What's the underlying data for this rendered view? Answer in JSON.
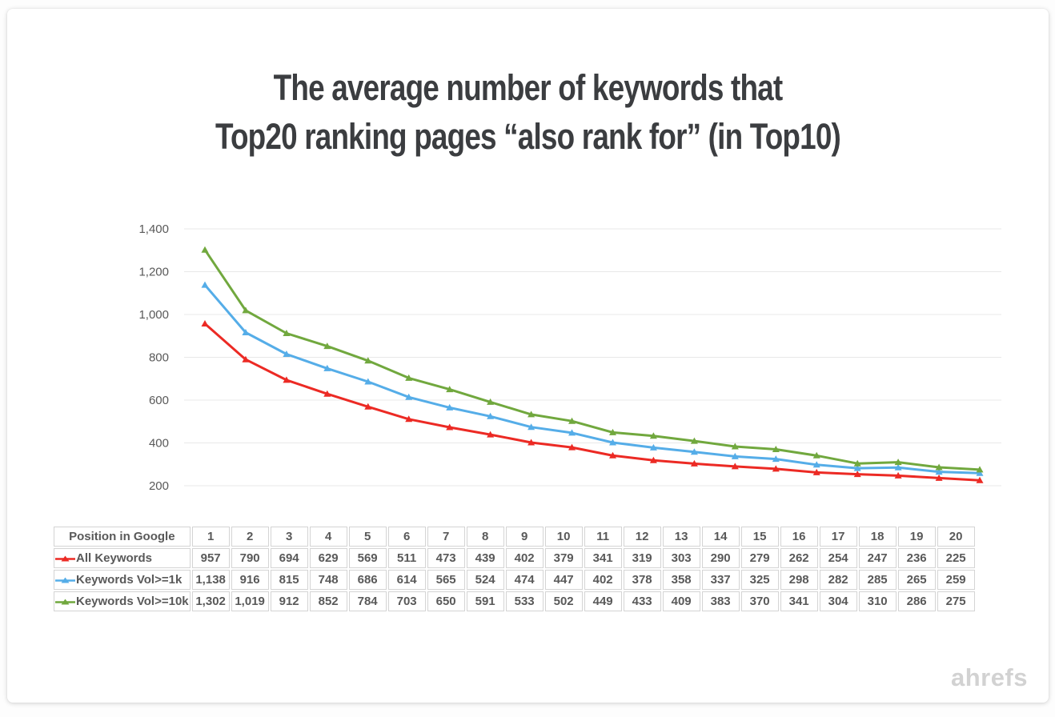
{
  "page": {
    "watermark": "ahrefs"
  },
  "title": {
    "line1": "The average number of keywords that",
    "line2": "Top20 ranking pages “also rank for” (in Top10)"
  },
  "chart_data": {
    "type": "line",
    "title": "The average number of keywords that Top20 ranking pages “also rank for” (in Top10)",
    "categories": [
      1,
      2,
      3,
      4,
      5,
      6,
      7,
      8,
      9,
      10,
      11,
      12,
      13,
      14,
      15,
      16,
      17,
      18,
      19,
      20
    ],
    "series": [
      {
        "name": "All Keywords",
        "color": "#ec2a24",
        "values": [
          957,
          790,
          694,
          629,
          569,
          511,
          473,
          439,
          402,
          379,
          341,
          319,
          303,
          290,
          279,
          262,
          254,
          247,
          236,
          225
        ]
      },
      {
        "name": "Keywords Vol>=1k",
        "color": "#55ade8",
        "values": [
          1138,
          916,
          815,
          748,
          686,
          614,
          565,
          524,
          474,
          447,
          402,
          378,
          358,
          337,
          325,
          298,
          282,
          285,
          265,
          259
        ]
      },
      {
        "name": "Keywords Vol>=10k",
        "color": "#71a83e",
        "values": [
          1302,
          1019,
          912,
          852,
          784,
          703,
          650,
          591,
          533,
          502,
          449,
          433,
          409,
          383,
          370,
          341,
          304,
          310,
          286,
          275
        ]
      }
    ],
    "xlabel": "Position in Google",
    "ylabel": "",
    "ylim": [
      200,
      1400
    ],
    "ytick_step": 200,
    "grid": true,
    "gridline_color": "#e8e8e8",
    "axis_label_color": "#595959",
    "legend_position": "table-below"
  },
  "table": {
    "header_label": "Position in Google",
    "columns": [
      "1",
      "2",
      "3",
      "4",
      "5",
      "6",
      "7",
      "8",
      "9",
      "10",
      "11",
      "12",
      "13",
      "14",
      "15",
      "16",
      "17",
      "18",
      "19",
      "20"
    ],
    "rows": [
      {
        "label": "All Keywords",
        "color": "#ec2a24",
        "values": [
          "957",
          "790",
          "694",
          "629",
          "569",
          "511",
          "473",
          "439",
          "402",
          "379",
          "341",
          "319",
          "303",
          "290",
          "279",
          "262",
          "254",
          "247",
          "236",
          "225"
        ]
      },
      {
        "label": "Keywords Vol>=1k",
        "color": "#55ade8",
        "values": [
          "1,138",
          "916",
          "815",
          "748",
          "686",
          "614",
          "565",
          "524",
          "474",
          "447",
          "402",
          "378",
          "358",
          "337",
          "325",
          "298",
          "282",
          "285",
          "265",
          "259"
        ]
      },
      {
        "label": "Keywords Vol>=10k",
        "color": "#71a83e",
        "values": [
          "1,302",
          "1,019",
          "912",
          "852",
          "784",
          "703",
          "650",
          "591",
          "533",
          "502",
          "449",
          "433",
          "409",
          "383",
          "370",
          "341",
          "304",
          "310",
          "286",
          "275"
        ]
      }
    ]
  }
}
